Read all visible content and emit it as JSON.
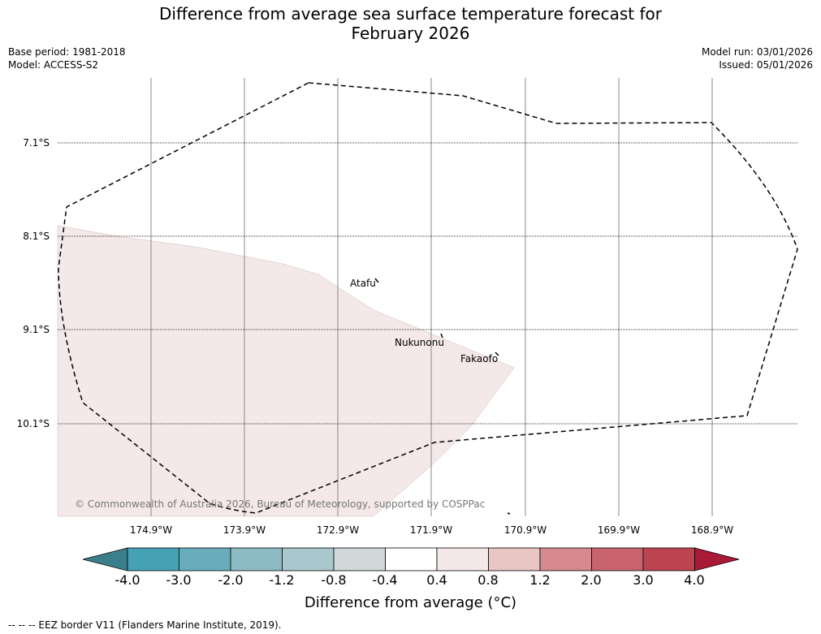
{
  "title": {
    "line1": "Difference from average sea surface temperature forecast for",
    "line2": "February 2026"
  },
  "meta": {
    "base_period": "Base period: 1981-2018",
    "model": "Model: ACCESS-S2",
    "model_run": "Model run: 03/01/2026",
    "issued": "Issued: 05/01/2026"
  },
  "axes": {
    "lat_labels": [
      "7.1°S",
      "8.1°S",
      "9.1°S",
      "10.1°S"
    ],
    "lon_labels": [
      "174.9°W",
      "173.9°W",
      "172.9°W",
      "171.9°W",
      "170.9°W",
      "169.9°W",
      "168.9°W"
    ]
  },
  "places": {
    "atafu": "Atafu",
    "nukunonu": "Nukunonu",
    "fakaofo": "Fakaofo"
  },
  "anomaly_region_color": "#f4e8e8",
  "copyright": "© Commonwealth of Australia 2026, Bureau of Meteorology, supported by COSPPac",
  "colorbar": {
    "ticks": [
      "-4.0",
      "-3.0",
      "-2.0",
      "-1.2",
      "-0.8",
      "-0.4",
      "0.4",
      "0.8",
      "1.2",
      "2.0",
      "3.0",
      "4.0"
    ],
    "low_extend_color": "#3c7f8c",
    "high_extend_color": "#a81a35",
    "colors": [
      "#45a2b4",
      "#69adbd",
      "#8cbbc5",
      "#a9c7cd",
      "#d2d7da",
      "#ffffff",
      "#f5e8e8",
      "#e9c6c3",
      "#d6898f",
      "#c9646e",
      "#bc4451"
    ],
    "label": "Difference from average (°C)"
  },
  "footnote": "--  --  -- EEZ border V11 (Flanders Marine Institute, 2019)."
}
